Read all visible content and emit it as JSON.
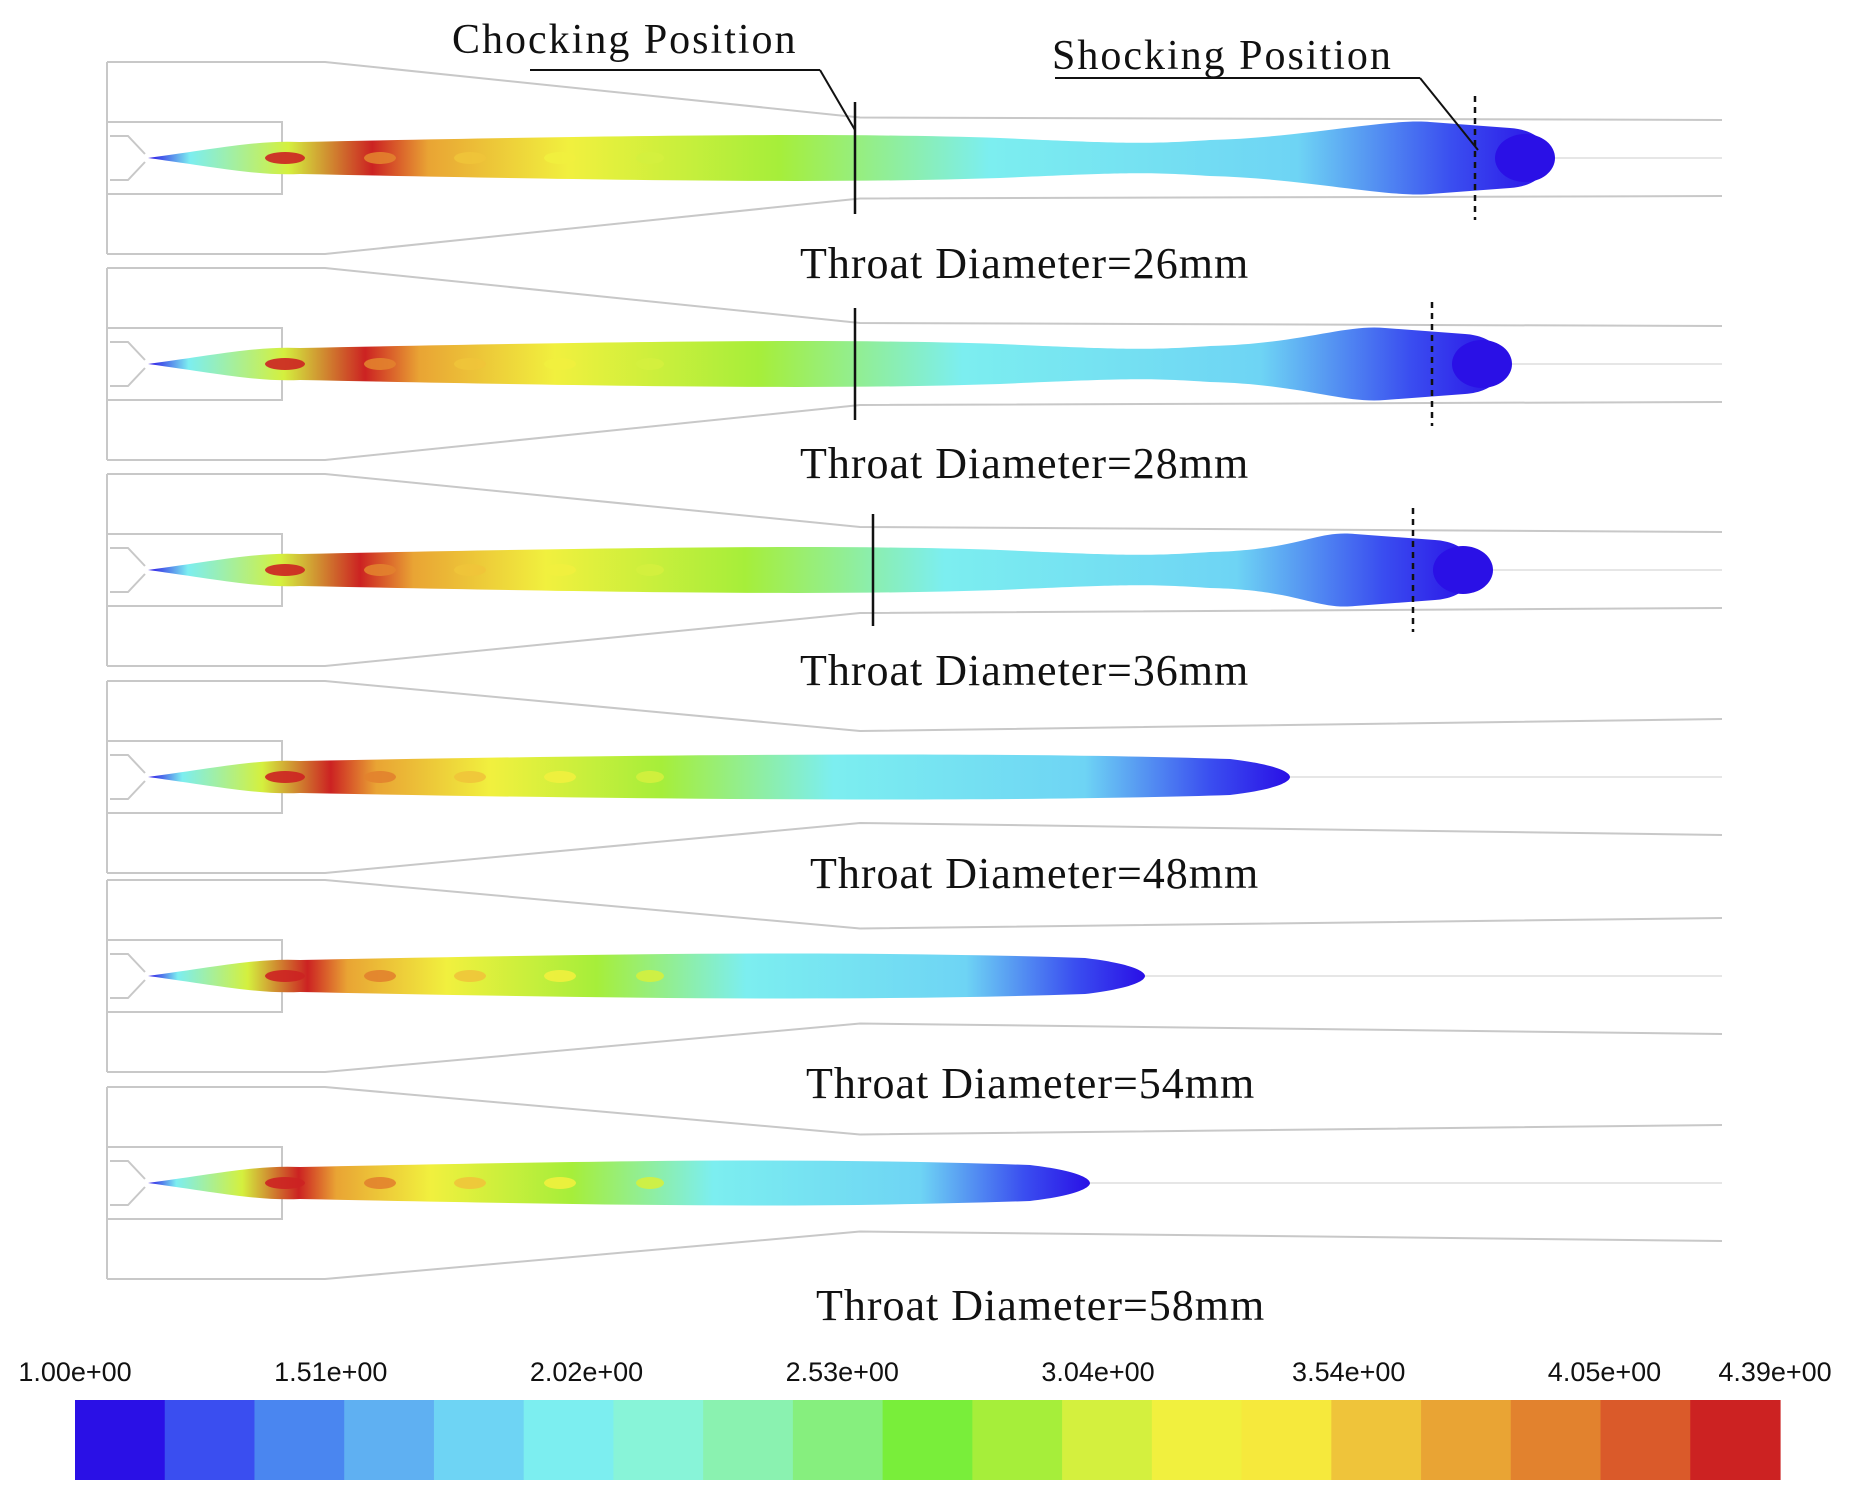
{
  "annotations": {
    "chocking": "Chocking Position",
    "shocking": "Shocking Position"
  },
  "cases": [
    {
      "label": "Throat Diameter=26mm",
      "chock": true,
      "shock": true,
      "throat": 26
    },
    {
      "label": "Throat Diameter=28mm",
      "chock": true,
      "shock": true,
      "throat": 28
    },
    {
      "label": "Throat Diameter=36mm",
      "chock": true,
      "shock": true,
      "throat": 36
    },
    {
      "label": "Throat Diameter=48mm",
      "chock": false,
      "shock": false,
      "throat": 48
    },
    {
      "label": "Throat Diameter=54mm",
      "chock": false,
      "shock": false,
      "throat": 54
    },
    {
      "label": "Throat Diameter=58mm",
      "chock": false,
      "shock": false,
      "throat": 58
    }
  ],
  "colorbar": {
    "min": 1.0,
    "max": 4.39,
    "ticks": [
      "1.00e+00",
      "1.51e+00",
      "2.02e+00",
      "2.53e+00",
      "3.04e+00",
      "3.54e+00",
      "4.05e+00",
      "4.39e+00"
    ],
    "colors": [
      "#2a10e6",
      "#3a4ef0",
      "#4a86f0",
      "#5fb0f2",
      "#6ed4f4",
      "#7ceef0",
      "#88f4d8",
      "#8af2b0",
      "#86ef7e",
      "#79ee3a",
      "#a6ee3a",
      "#d4f03e",
      "#f1f03e",
      "#f6e93c",
      "#efc43a",
      "#e9a434",
      "#e2822e",
      "#da5a2a",
      "#cc2222"
    ]
  }
}
